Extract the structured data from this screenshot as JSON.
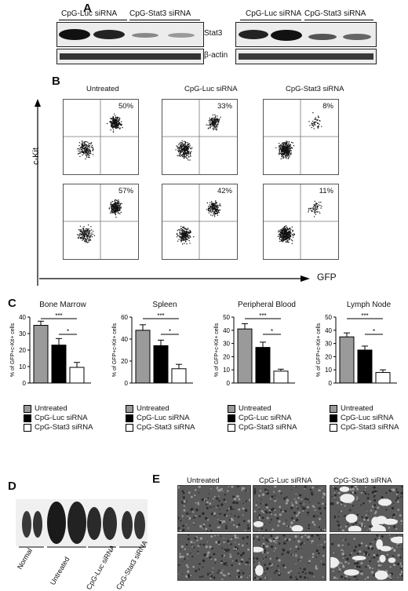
{
  "panels": {
    "A": "A",
    "B": "B",
    "C": "C",
    "D": "D",
    "E": "E"
  },
  "panelA": {
    "headers": [
      "CpG-Luc siRNA",
      "CpG-Stat3 siRNA",
      "CpG-Luc siRNA",
      "CpG-Stat3 siRNA"
    ],
    "stat3_label": "Stat3",
    "actin_label": "β-actin"
  },
  "panelB": {
    "columns": [
      "Untreated",
      "CpG-Luc siRNA",
      "CpG-Stat3 siRNA"
    ],
    "y_axis": "c-Kit",
    "x_axis": "GFP",
    "percent": [
      [
        "50%",
        "33%",
        "8%"
      ],
      [
        "57%",
        "42%",
        "11%"
      ]
    ]
  },
  "panelC": {
    "ylabel": "% of GFP+c-Kit+ cells",
    "legend": [
      "Untreated",
      "CpG-Luc siRNA",
      "CpG-Stat3 siRNA"
    ],
    "sig_labels": [
      "***",
      "*"
    ]
  },
  "chart_data": [
    {
      "type": "bar",
      "title": "Bone Marrow",
      "categories": [
        "Untreated",
        "CpG-Luc siRNA",
        "CpG-Stat3 siRNA"
      ],
      "values": [
        35,
        23,
        9.5
      ],
      "errors": [
        2.5,
        4,
        3
      ],
      "ylim": [
        0,
        40
      ],
      "yticks": [
        0,
        10,
        20,
        30,
        40
      ],
      "ylabel": "% of GFP+c-Kit+ cells"
    },
    {
      "type": "bar",
      "title": "Spleen",
      "categories": [
        "Untreated",
        "CpG-Luc siRNA",
        "CpG-Stat3 siRNA"
      ],
      "values": [
        48,
        34,
        13
      ],
      "errors": [
        5,
        5,
        4
      ],
      "ylim": [
        0,
        60
      ],
      "yticks": [
        0,
        20,
        40,
        60
      ],
      "ylabel": "% of GFP+c-Kit+ cells"
    },
    {
      "type": "bar",
      "title": "Peripheral Blood",
      "categories": [
        "Untreated",
        "CpG-Luc siRNA",
        "CpG-Stat3 siRNA"
      ],
      "values": [
        41,
        27,
        9
      ],
      "errors": [
        4,
        4,
        1.5
      ],
      "ylim": [
        0,
        50
      ],
      "yticks": [
        0,
        10,
        20,
        30,
        40,
        50
      ],
      "ylabel": "% of GFP+c-Kit+ cells"
    },
    {
      "type": "bar",
      "title": "Lymph Node",
      "categories": [
        "Untreated",
        "CpG-Luc siRNA",
        "CpG-Stat3 siRNA"
      ],
      "values": [
        35,
        25,
        8
      ],
      "errors": [
        3,
        3,
        2
      ],
      "ylim": [
        0,
        50
      ],
      "yticks": [
        0,
        10,
        20,
        30,
        40,
        50
      ],
      "ylabel": "% of GFP+c-Kit+ cells"
    }
  ],
  "panelD": {
    "labels": [
      "Normal",
      "Untreated",
      "CpG-Luc siRNA",
      "CpG-Stat3 siRNA"
    ]
  },
  "panelE": {
    "columns": [
      "Untreated",
      "CpG-Luc siRNA",
      "CpG-Stat3 siRNA"
    ]
  },
  "colors": {
    "untreated": "#9a9a9a",
    "luc": "#000000",
    "stat3": "#ffffff"
  }
}
